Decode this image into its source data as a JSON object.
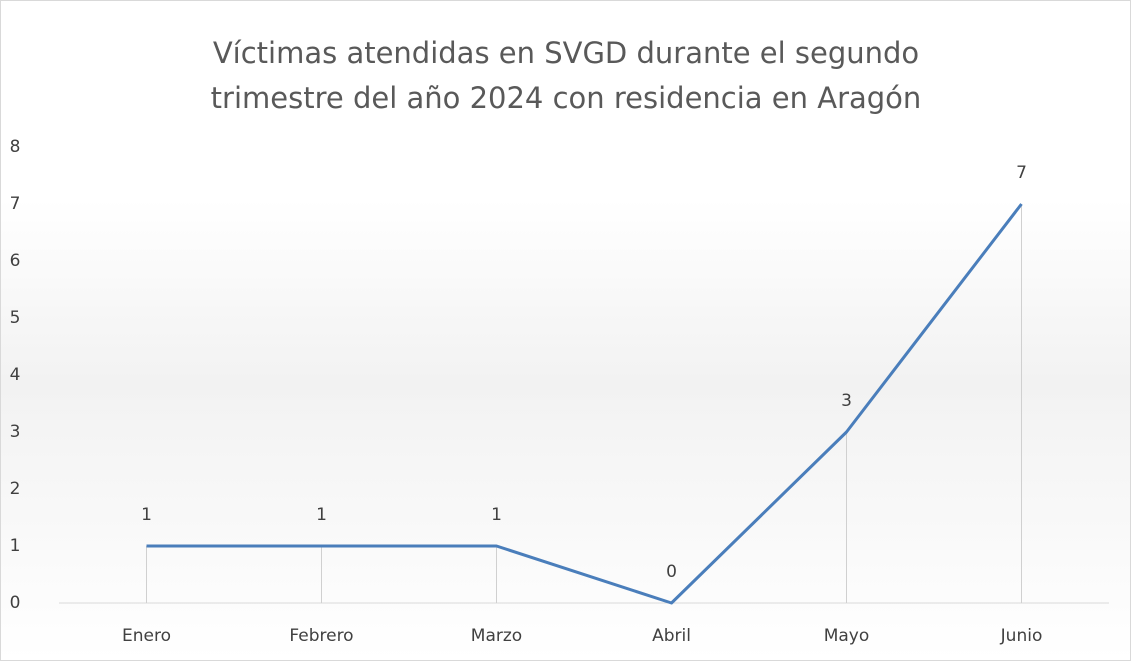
{
  "chart_data": {
    "type": "line",
    "title": "Víctimas atendidas en SVGD durante el segundo trimestre del año 2024 con residencia en Aragón",
    "categories": [
      "Enero",
      "Febrero",
      "Marzo",
      "Abril",
      "Mayo",
      "Junio"
    ],
    "values": [
      1,
      1,
      1,
      0,
      3,
      7
    ],
    "color": "#4a7ebb",
    "ylim": [
      0,
      8
    ],
    "yticks": [
      0,
      1,
      2,
      3,
      4,
      5,
      6,
      7,
      8
    ],
    "grid": false,
    "drop_lines": true,
    "data_labels": true
  }
}
